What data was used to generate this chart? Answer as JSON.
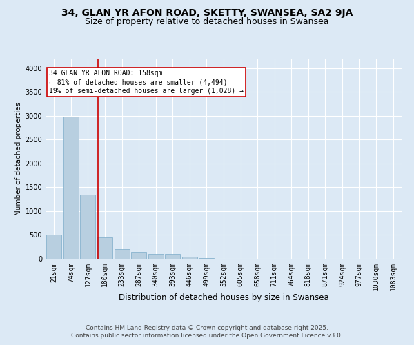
{
  "title1": "34, GLAN YR AFON ROAD, SKETTY, SWANSEA, SA2 9JA",
  "title2": "Size of property relative to detached houses in Swansea",
  "xlabel": "Distribution of detached houses by size in Swansea",
  "ylabel": "Number of detached properties",
  "bin_labels": [
    "21sqm",
    "74sqm",
    "127sqm",
    "180sqm",
    "233sqm",
    "287sqm",
    "340sqm",
    "393sqm",
    "446sqm",
    "499sqm",
    "552sqm",
    "605sqm",
    "658sqm",
    "711sqm",
    "764sqm",
    "818sqm",
    "871sqm",
    "924sqm",
    "977sqm",
    "1030sqm",
    "1083sqm"
  ],
  "bar_heights": [
    510,
    2980,
    1350,
    450,
    200,
    150,
    100,
    100,
    50,
    10,
    0,
    0,
    0,
    0,
    0,
    0,
    0,
    0,
    0,
    0,
    0
  ],
  "bar_color": "#b8cfe0",
  "bar_edge_color": "#7aabc8",
  "vline_color": "#cc0000",
  "annotation_text": "34 GLAN YR AFON ROAD: 158sqm\n← 81% of detached houses are smaller (4,494)\n19% of semi-detached houses are larger (1,028) →",
  "annotation_box_color": "#cc0000",
  "ylim": [
    0,
    4200
  ],
  "yticks": [
    0,
    500,
    1000,
    1500,
    2000,
    2500,
    3000,
    3500,
    4000
  ],
  "background_color": "#dce9f5",
  "plot_bg_color": "#dce9f5",
  "footer1": "Contains HM Land Registry data © Crown copyright and database right 2025.",
  "footer2": "Contains public sector information licensed under the Open Government Licence v3.0.",
  "title1_fontsize": 10,
  "title2_fontsize": 9,
  "xlabel_fontsize": 8.5,
  "ylabel_fontsize": 7.5,
  "tick_fontsize": 7,
  "annotation_fontsize": 7,
  "footer_fontsize": 6.5
}
